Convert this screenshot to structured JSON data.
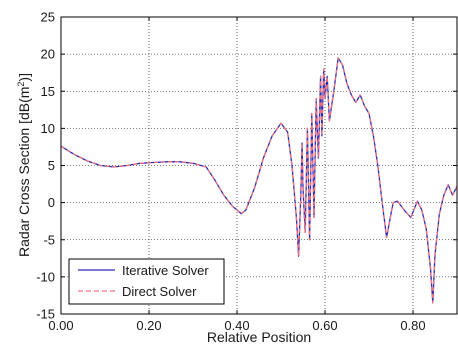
{
  "chart_data": {
    "type": "line",
    "xlabel": "Relative Position",
    "ylabel_main": "Radar Cross Section [dB(m",
    "ylabel_sup": "2",
    "ylabel_end": ")]",
    "xlim": [
      0,
      0.9
    ],
    "ylim": [
      -15,
      25
    ],
    "xticks": [
      0.0,
      0.2,
      0.4,
      0.6,
      0.8
    ],
    "xtick_labels": [
      "0.00",
      "0.20",
      "0.40",
      "0.60",
      "0.80"
    ],
    "yticks": [
      -15,
      -10,
      -5,
      0,
      5,
      10,
      15,
      20,
      25
    ],
    "ytick_labels": [
      "-15",
      "-10",
      "-5",
      "0",
      "5",
      "10",
      "15",
      "20",
      "25"
    ],
    "legend_position": "bottom-left",
    "series": [
      {
        "name": "Iterative Solver",
        "color": "#2b2bb5",
        "dash": "solid",
        "x": [
          0.0,
          0.03,
          0.06,
          0.09,
          0.12,
          0.15,
          0.18,
          0.21,
          0.24,
          0.27,
          0.3,
          0.33,
          0.35,
          0.37,
          0.39,
          0.41,
          0.42,
          0.44,
          0.46,
          0.48,
          0.5,
          0.515,
          0.525,
          0.535,
          0.54,
          0.545,
          0.548,
          0.55,
          0.555,
          0.56,
          0.565,
          0.57,
          0.575,
          0.58,
          0.585,
          0.59,
          0.593,
          0.597,
          0.6,
          0.605,
          0.61,
          0.62,
          0.63,
          0.64,
          0.65,
          0.66,
          0.67,
          0.68,
          0.69,
          0.7,
          0.71,
          0.72,
          0.73,
          0.74,
          0.75,
          0.755,
          0.765,
          0.78,
          0.795,
          0.81,
          0.82,
          0.83,
          0.84,
          0.845,
          0.85,
          0.86,
          0.87,
          0.88,
          0.89,
          0.9
        ],
        "y": [
          7.6,
          6.5,
          5.6,
          5.0,
          4.8,
          5.0,
          5.3,
          5.4,
          5.5,
          5.5,
          5.3,
          4.8,
          3.0,
          1.0,
          -0.5,
          -1.5,
          -1.0,
          2.0,
          6.0,
          9.0,
          10.7,
          9.5,
          5.0,
          -2.0,
          -7.2,
          1.0,
          8.0,
          2.0,
          -4.0,
          10.0,
          -5.0,
          12.0,
          -2.0,
          14.0,
          6.0,
          17.0,
          9.0,
          18.0,
          14.0,
          17.0,
          11.0,
          15.0,
          19.5,
          18.5,
          16.0,
          14.5,
          13.5,
          14.5,
          13.0,
          12.0,
          9.0,
          5.0,
          0.0,
          -4.7,
          -1.5,
          0.0,
          0.2,
          -1.0,
          -2.0,
          0.2,
          -1.0,
          -3.5,
          -9.0,
          -13.5,
          -7.0,
          -1.5,
          1.0,
          2.4,
          1.0,
          2.2
        ]
      },
      {
        "name": "Direct Solver",
        "color": "#f07080",
        "dash": "dashed",
        "x": [
          0.0,
          0.03,
          0.06,
          0.09,
          0.12,
          0.15,
          0.18,
          0.21,
          0.24,
          0.27,
          0.3,
          0.33,
          0.35,
          0.37,
          0.39,
          0.41,
          0.42,
          0.44,
          0.46,
          0.48,
          0.5,
          0.515,
          0.525,
          0.535,
          0.54,
          0.545,
          0.548,
          0.55,
          0.555,
          0.56,
          0.565,
          0.57,
          0.575,
          0.58,
          0.585,
          0.59,
          0.593,
          0.597,
          0.6,
          0.605,
          0.61,
          0.62,
          0.63,
          0.64,
          0.65,
          0.66,
          0.67,
          0.68,
          0.69,
          0.7,
          0.71,
          0.72,
          0.73,
          0.74,
          0.75,
          0.755,
          0.765,
          0.78,
          0.795,
          0.81,
          0.82,
          0.83,
          0.84,
          0.845,
          0.85,
          0.86,
          0.87,
          0.88,
          0.89,
          0.9
        ],
        "y": [
          7.6,
          6.5,
          5.6,
          5.0,
          4.8,
          5.0,
          5.3,
          5.4,
          5.5,
          5.5,
          5.3,
          4.8,
          3.0,
          1.0,
          -0.5,
          -1.5,
          -1.0,
          2.0,
          6.0,
          9.0,
          10.7,
          9.5,
          5.0,
          -2.0,
          -7.2,
          1.0,
          8.0,
          2.0,
          -4.0,
          10.0,
          -5.0,
          12.0,
          -2.0,
          14.0,
          6.0,
          17.0,
          9.0,
          18.0,
          14.0,
          17.0,
          11.0,
          15.0,
          19.5,
          18.5,
          16.0,
          14.5,
          13.5,
          14.5,
          13.0,
          12.0,
          9.0,
          5.0,
          0.0,
          -4.7,
          -1.5,
          0.0,
          0.2,
          -1.0,
          -2.0,
          0.2,
          -1.0,
          -3.5,
          -9.0,
          -13.5,
          -7.0,
          -1.5,
          1.0,
          2.4,
          1.0,
          2.2
        ]
      }
    ]
  }
}
